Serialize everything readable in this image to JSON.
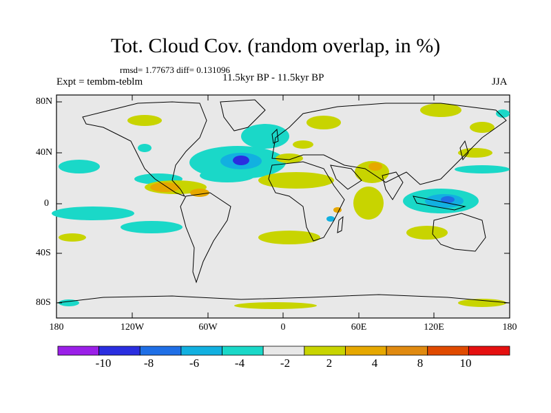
{
  "title": "Tot. Cloud Cov. (random overlap, in %)",
  "stats": "rmsd= 1.77673 diff= 0.131096",
  "experiment": "Expt = tembm-teblm",
  "period": "11.5kyr BP - 11.5kyr BP",
  "season": "JJA",
  "lat_ticks": [
    "80N",
    "40N",
    "0",
    "40S",
    "80S"
  ],
  "lon_ticks": [
    "180",
    "120W",
    "60W",
    "0",
    "60E",
    "120E",
    "180"
  ],
  "colorbar": {
    "colors": [
      "#9b1fe8",
      "#2a2ee0",
      "#1f6fe6",
      "#12b0e0",
      "#1ad8c8",
      "#e8e8e8",
      "#c8d400",
      "#e6a800",
      "#e08a10",
      "#e04a00",
      "#e51010"
    ],
    "labels": [
      "-10",
      "-8",
      "-6",
      "-4",
      "-2",
      "2",
      "4",
      "8",
      "10"
    ]
  }
}
